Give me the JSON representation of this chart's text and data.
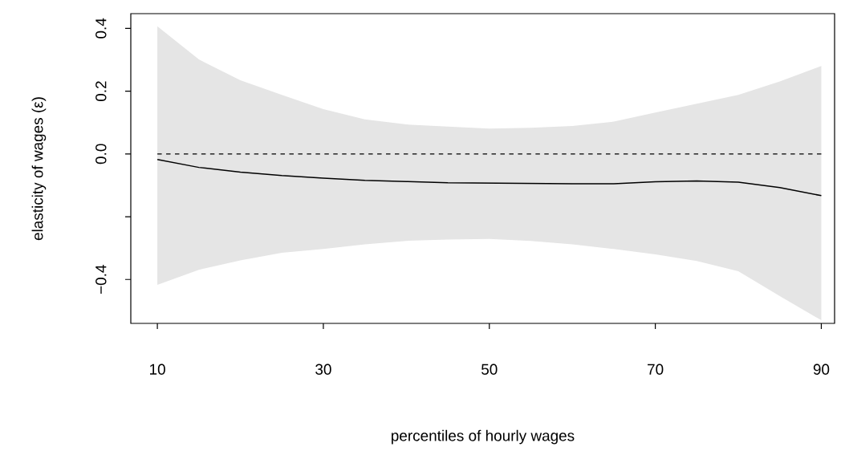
{
  "chart_data": {
    "type": "line",
    "xlabel": "percentiles of hourly wages",
    "ylabel": "elasticity of wages (ε)",
    "x": [
      10,
      15,
      20,
      25,
      30,
      35,
      40,
      45,
      50,
      55,
      60,
      65,
      70,
      75,
      80,
      85,
      90
    ],
    "series": [
      {
        "color": "#000000",
        "line_style": "solid",
        "values": [
          -0.018,
          -0.043,
          -0.058,
          -0.069,
          -0.077,
          -0.084,
          -0.088,
          -0.092,
          -0.093,
          -0.094,
          -0.095,
          -0.095,
          -0.089,
          -0.086,
          -0.09,
          -0.107,
          -0.133
        ],
        "lower": [
          -0.417,
          -0.369,
          -0.339,
          -0.315,
          -0.303,
          -0.288,
          -0.277,
          -0.273,
          -0.271,
          -0.277,
          -0.288,
          -0.303,
          -0.32,
          -0.341,
          -0.374,
          -0.453,
          -0.53
        ],
        "upper": [
          0.407,
          0.301,
          0.235,
          0.188,
          0.143,
          0.11,
          0.094,
          0.087,
          0.081,
          0.083,
          0.089,
          0.103,
          0.132,
          0.16,
          0.188,
          0.231,
          0.28
        ]
      }
    ],
    "ref_lines": [
      {
        "axis": "y",
        "value": 0,
        "color": "#000000",
        "line_style": "dashed"
      }
    ],
    "xlim": [
      6.8,
      91.6
    ],
    "ylim": [
      -0.54,
      0.447
    ],
    "xticks": [
      10,
      30,
      50,
      70,
      90
    ],
    "yticks": [
      {
        "value": -0.4,
        "label": "−0.4"
      },
      {
        "value": -0.2,
        "label": null
      },
      {
        "value": 0,
        "label": "0.0"
      },
      0.2,
      0.4
    ],
    "grid": false,
    "marker": "none"
  }
}
